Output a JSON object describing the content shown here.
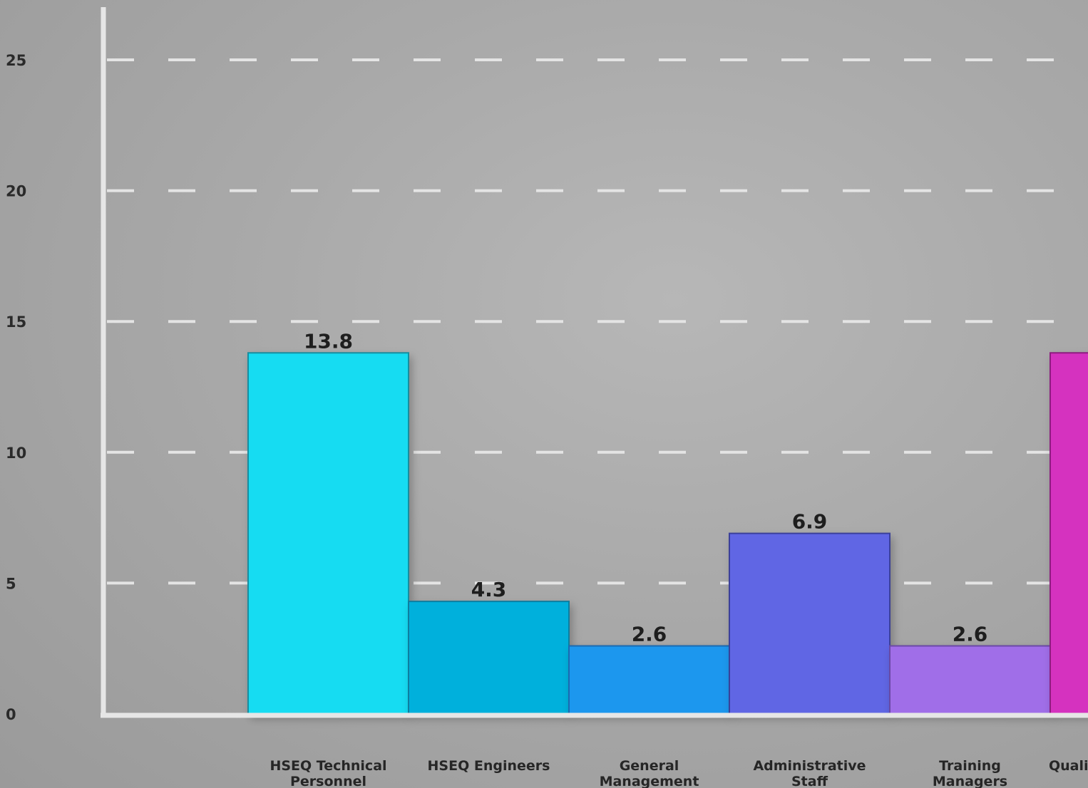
{
  "chart_data": {
    "type": "bar",
    "title": "",
    "xlabel": "",
    "ylabel": "",
    "ylim": [
      0,
      25
    ],
    "yticks": [
      0,
      5,
      10,
      15,
      20,
      25
    ],
    "grid": true,
    "legend": "none",
    "categories": [
      [
        "HSEQ Technical",
        "Personnel"
      ],
      [
        "HSEQ Engineers"
      ],
      [
        "General",
        "Management"
      ],
      [
        "Administrative",
        "Staff"
      ],
      [
        "Training",
        "Managers"
      ],
      [
        "Quali"
      ]
    ],
    "values": [
      13.8,
      4.3,
      2.6,
      6.9,
      2.6,
      13.8
    ],
    "value_labels": [
      "13.8",
      "4.3",
      "2.6",
      "6.9",
      "2.6",
      null
    ],
    "colors": [
      "#12dcf2",
      "#00b0dc",
      "#1d97ee",
      "#6066e4",
      "#a06ee8",
      "#d531bf"
    ],
    "edge_colors": [
      "#138ea0",
      "#0a7ea0",
      "#1a6bb0",
      "#3b3f9a",
      "#6b4aa6",
      "#8e1d80"
    ]
  }
}
